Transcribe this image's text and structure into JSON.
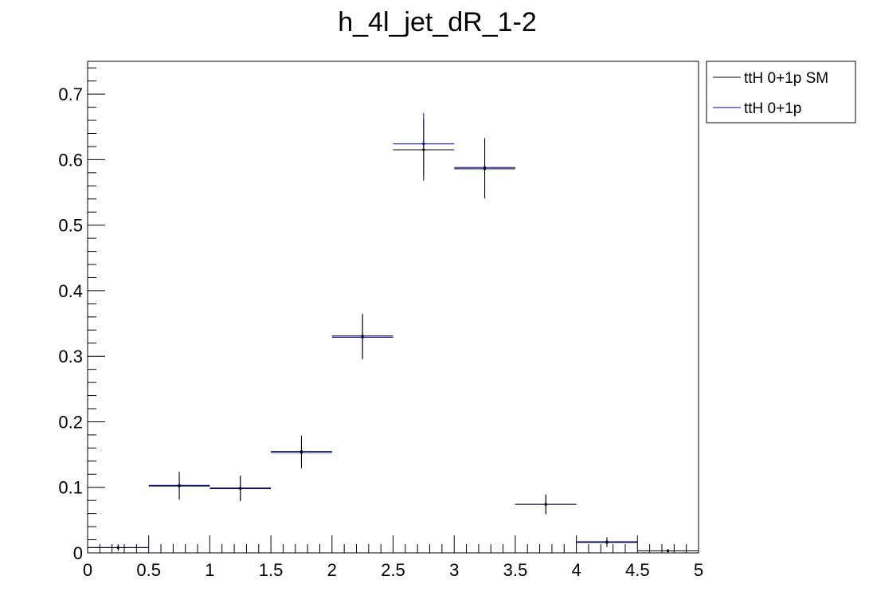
{
  "chart_data": {
    "type": "histogram",
    "title": "h_4l_jet_dR_1-2",
    "xlabel": "",
    "ylabel": "",
    "xlim": [
      0,
      5
    ],
    "ylim": [
      0,
      0.75
    ],
    "grid": false,
    "legend_position": "top-right (outside plot)",
    "x_tick_labels": [
      "0",
      "0.5",
      "1",
      "1.5",
      "2",
      "2.5",
      "3",
      "3.5",
      "4",
      "4.5",
      "5"
    ],
    "y_tick_labels": [
      "0",
      "0.1",
      "0.2",
      "0.3",
      "0.4",
      "0.5",
      "0.6",
      "0.7"
    ],
    "bin_edges": [
      0,
      0.5,
      1,
      1.5,
      2,
      2.5,
      3,
      3.5,
      4,
      4.5,
      5
    ],
    "series": [
      {
        "name": "ttH 0+1p SM",
        "color": "#000000",
        "values": [
          0.008,
          0.102,
          0.098,
          0.153,
          0.331,
          0.615,
          0.586,
          0.074,
          0.016,
          0.003
        ],
        "errors": [
          0.005,
          0.021,
          0.019,
          0.024,
          0.034,
          0.047,
          0.045,
          0.015,
          0.007,
          0.003
        ]
      },
      {
        "name": "ttH 0+1p",
        "color": "#0000aa",
        "values": [
          0.008,
          0.103,
          0.099,
          0.155,
          0.329,
          0.624,
          0.588,
          0.074,
          0.017,
          0.003
        ],
        "errors": [
          0.005,
          0.021,
          0.019,
          0.024,
          0.034,
          0.047,
          0.045,
          0.015,
          0.007,
          0.003
        ]
      }
    ]
  }
}
